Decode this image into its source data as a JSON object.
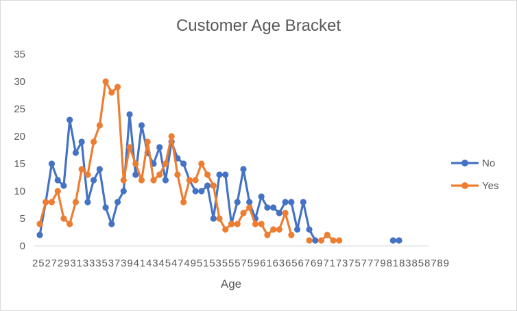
{
  "chart_data": {
    "type": "line",
    "title": "Customer Age Bracket",
    "xlabel": "Age",
    "ylabel": "",
    "ylim": [
      0,
      35
    ],
    "yticks": [
      0,
      5,
      10,
      15,
      20,
      25,
      30,
      35
    ],
    "xlim": [
      25,
      89
    ],
    "x_tick_labels": [
      "25",
      "27",
      "29",
      "31",
      "33",
      "35",
      "37",
      "39",
      "41",
      "43",
      "45",
      "47",
      "49",
      "51",
      "53",
      "55",
      "57",
      "59",
      "61",
      "63",
      "65",
      "67",
      "69",
      "71",
      "73",
      "75",
      "77",
      "79",
      "81",
      "83",
      "85",
      "87",
      "89"
    ],
    "grid": false,
    "legend_position": "right",
    "series": [
      {
        "name": "No",
        "color": "#4472c4",
        "points": [
          [
            25,
            2
          ],
          [
            26,
            8
          ],
          [
            27,
            15
          ],
          [
            28,
            12
          ],
          [
            29,
            11
          ],
          [
            30,
            23
          ],
          [
            31,
            17
          ],
          [
            32,
            19
          ],
          [
            33,
            8
          ],
          [
            34,
            12
          ],
          [
            35,
            14
          ],
          [
            36,
            7
          ],
          [
            37,
            4
          ],
          [
            38,
            8
          ],
          [
            39,
            10
          ],
          [
            40,
            24
          ],
          [
            41,
            13
          ],
          [
            42,
            22
          ],
          [
            43,
            17
          ],
          [
            44,
            15
          ],
          [
            45,
            18
          ],
          [
            46,
            12
          ],
          [
            47,
            19
          ],
          [
            48,
            16
          ],
          [
            49,
            15
          ],
          [
            50,
            12
          ],
          [
            51,
            10
          ],
          [
            52,
            10
          ],
          [
            53,
            11
          ],
          [
            54,
            5
          ],
          [
            55,
            13
          ],
          [
            56,
            13
          ],
          [
            57,
            4
          ],
          [
            58,
            8
          ],
          [
            59,
            14
          ],
          [
            60,
            8
          ],
          [
            61,
            5
          ],
          [
            62,
            9
          ],
          [
            63,
            7
          ],
          [
            64,
            7
          ],
          [
            65,
            6
          ],
          [
            66,
            8
          ],
          [
            67,
            8
          ],
          [
            68,
            3
          ],
          [
            69,
            8
          ],
          [
            70,
            3
          ],
          [
            71,
            1
          ],
          [
            84,
            1
          ],
          [
            85,
            1
          ]
        ]
      },
      {
        "name": "Yes",
        "color": "#ed7d31",
        "points": [
          [
            25,
            4
          ],
          [
            26,
            8
          ],
          [
            27,
            8
          ],
          [
            28,
            10
          ],
          [
            29,
            5
          ],
          [
            30,
            4
          ],
          [
            31,
            8
          ],
          [
            32,
            14
          ],
          [
            33,
            13
          ],
          [
            34,
            19
          ],
          [
            35,
            22
          ],
          [
            36,
            30
          ],
          [
            37,
            28
          ],
          [
            38,
            29
          ],
          [
            39,
            12
          ],
          [
            40,
            18
          ],
          [
            41,
            15
          ],
          [
            42,
            12
          ],
          [
            43,
            19
          ],
          [
            44,
            12
          ],
          [
            45,
            13
          ],
          [
            46,
            15
          ],
          [
            47,
            20
          ],
          [
            48,
            13
          ],
          [
            49,
            8
          ],
          [
            50,
            12
          ],
          [
            51,
            12
          ],
          [
            52,
            15
          ],
          [
            53,
            13
          ],
          [
            54,
            11
          ],
          [
            55,
            5
          ],
          [
            56,
            3
          ],
          [
            57,
            4
          ],
          [
            58,
            4
          ],
          [
            59,
            6
          ],
          [
            60,
            7
          ],
          [
            61,
            4
          ],
          [
            62,
            4
          ],
          [
            63,
            2
          ],
          [
            64,
            3
          ],
          [
            65,
            3
          ],
          [
            66,
            6
          ],
          [
            67,
            2
          ],
          [
            70,
            1
          ],
          [
            72,
            1
          ],
          [
            73,
            2
          ],
          [
            74,
            1
          ],
          [
            75,
            1
          ]
        ]
      }
    ]
  }
}
